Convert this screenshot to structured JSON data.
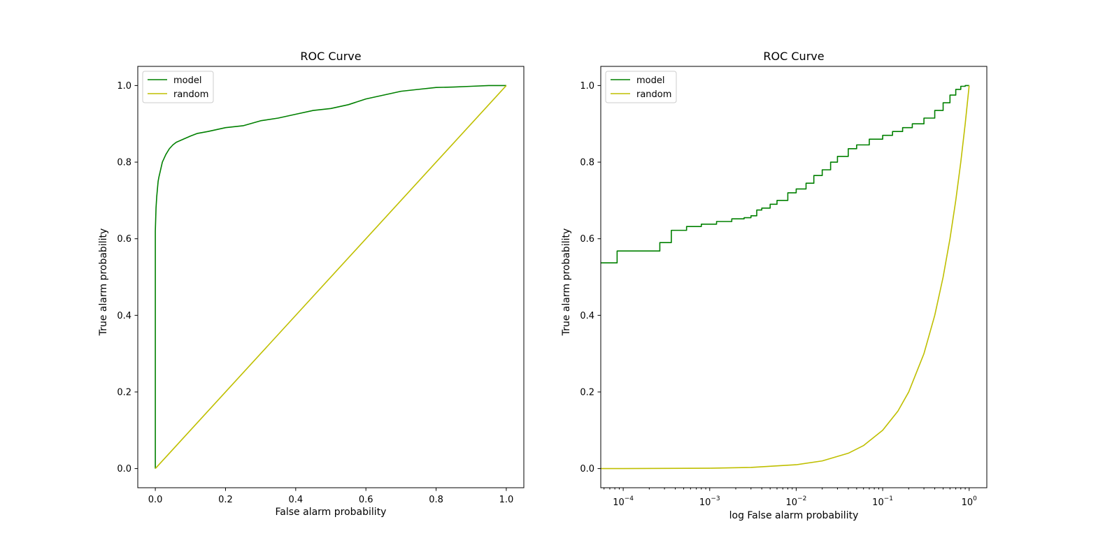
{
  "chart_data": [
    {
      "type": "line",
      "title": "ROC Curve",
      "xlabel": "False alarm probability",
      "ylabel": "True alarm probability",
      "xscale": "linear",
      "xlim": [
        -0.05,
        1.05
      ],
      "ylim": [
        -0.05,
        1.05
      ],
      "xticks": [
        0.0,
        0.2,
        0.4,
        0.6,
        0.8,
        1.0
      ],
      "xtick_labels": [
        "0.0",
        "0.2",
        "0.4",
        "0.6",
        "0.8",
        "1.0"
      ],
      "yticks": [
        0.0,
        0.2,
        0.4,
        0.6,
        0.8,
        1.0
      ],
      "ytick_labels": [
        "0.0",
        "0.2",
        "0.4",
        "0.6",
        "0.8",
        "1.0"
      ],
      "grid": false,
      "legend": "top-left",
      "series": [
        {
          "name": "model",
          "color": "#008000",
          "x": [
            0.0,
            0.0,
            0.0,
            0.001,
            0.002,
            0.004,
            0.006,
            0.008,
            0.01,
            0.015,
            0.02,
            0.025,
            0.03,
            0.04,
            0.05,
            0.06,
            0.08,
            0.1,
            0.12,
            0.15,
            0.2,
            0.25,
            0.3,
            0.35,
            0.4,
            0.45,
            0.5,
            0.55,
            0.6,
            0.65,
            0.7,
            0.75,
            0.8,
            0.85,
            0.9,
            0.95,
            1.0
          ],
          "y": [
            0.0,
            0.55,
            0.62,
            0.65,
            0.68,
            0.71,
            0.73,
            0.75,
            0.76,
            0.78,
            0.8,
            0.81,
            0.82,
            0.835,
            0.845,
            0.852,
            0.86,
            0.868,
            0.875,
            0.88,
            0.89,
            0.895,
            0.908,
            0.915,
            0.925,
            0.935,
            0.94,
            0.95,
            0.965,
            0.975,
            0.985,
            0.99,
            0.995,
            0.996,
            0.998,
            1.0,
            1.0
          ]
        },
        {
          "name": "random",
          "color": "#bfbf00",
          "x": [
            0.0,
            1.0
          ],
          "y": [
            0.0,
            1.0
          ]
        }
      ]
    },
    {
      "type": "line",
      "title": "ROC Curve",
      "xlabel": "log False alarm probability",
      "ylabel": "True alarm probability",
      "xscale": "log",
      "xlim": [
        5.5e-05,
        1.6
      ],
      "ylim": [
        -0.05,
        1.05
      ],
      "xticks": [
        0.0001,
        0.001,
        0.01,
        0.1,
        1
      ],
      "xtick_labels": [
        {
          "base": "10",
          "exp": "−4"
        },
        {
          "base": "10",
          "exp": "−3"
        },
        {
          "base": "10",
          "exp": "−2"
        },
        {
          "base": "10",
          "exp": "−1"
        },
        {
          "base": "10",
          "exp": "0"
        }
      ],
      "yticks": [
        0.0,
        0.2,
        0.4,
        0.6,
        0.8,
        1.0
      ],
      "ytick_labels": [
        "0.0",
        "0.2",
        "0.4",
        "0.6",
        "0.8",
        "1.0"
      ],
      "grid": false,
      "legend": "top-left",
      "series": [
        {
          "name": "model",
          "color": "#008000",
          "step": true,
          "x": [
            5.5e-05,
            8.5e-05,
            0.000265,
            0.00036,
            0.00054,
            0.0008,
            0.0012,
            0.0018,
            0.0025,
            0.003,
            0.0035,
            0.004,
            0.005,
            0.006,
            0.008,
            0.01,
            0.013,
            0.016,
            0.02,
            0.025,
            0.03,
            0.04,
            0.05,
            0.07,
            0.1,
            0.13,
            0.17,
            0.22,
            0.3,
            0.4,
            0.5,
            0.6,
            0.7,
            0.8,
            0.9,
            1.0
          ],
          "y": [
            0.537,
            0.568,
            0.59,
            0.622,
            0.632,
            0.638,
            0.645,
            0.652,
            0.655,
            0.66,
            0.675,
            0.68,
            0.69,
            0.7,
            0.72,
            0.73,
            0.745,
            0.765,
            0.78,
            0.8,
            0.815,
            0.835,
            0.845,
            0.86,
            0.87,
            0.88,
            0.89,
            0.9,
            0.915,
            0.935,
            0.955,
            0.975,
            0.99,
            0.998,
            1.0,
            1.0
          ]
        },
        {
          "name": "random",
          "color": "#bfbf00",
          "x": [
            5.5e-05,
            0.0001,
            0.001,
            0.003,
            0.01,
            0.02,
            0.04,
            0.06,
            0.1,
            0.15,
            0.2,
            0.3,
            0.4,
            0.5,
            0.6,
            0.7,
            0.8,
            0.9,
            1.0
          ],
          "y": [
            5.5e-05,
            0.0001,
            0.001,
            0.003,
            0.01,
            0.02,
            0.04,
            0.06,
            0.1,
            0.15,
            0.2,
            0.3,
            0.4,
            0.5,
            0.6,
            0.7,
            0.8,
            0.9,
            1.0
          ]
        }
      ]
    }
  ]
}
